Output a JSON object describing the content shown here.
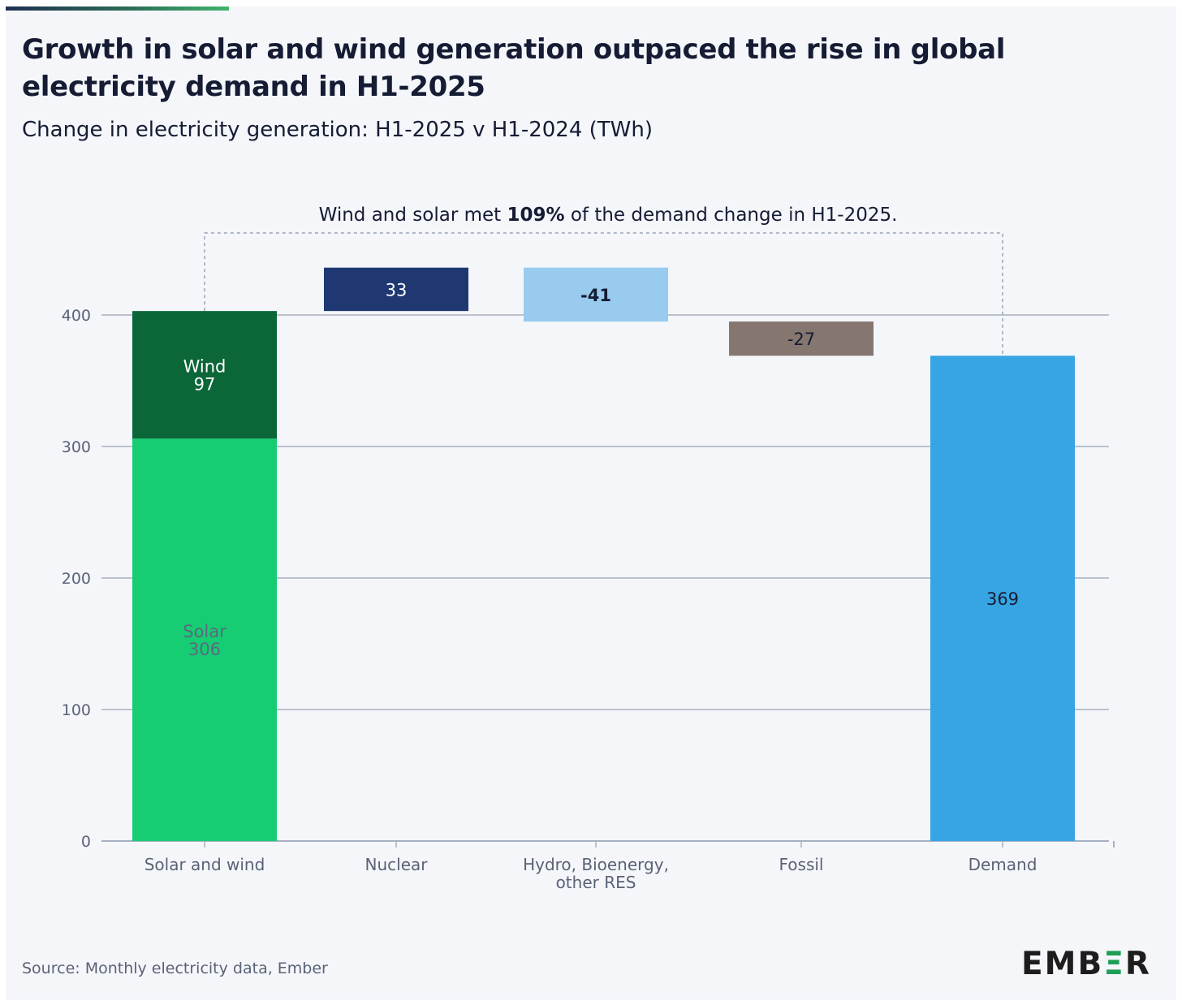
{
  "title": "Growth in solar and wind generation outpaced the rise in global electricity demand in H1-2025",
  "subtitle": "Change in electricity generation: H1-2025 v H1-2024 (TWh)",
  "annotation": {
    "before": "Wind and solar met ",
    "bold": "109%",
    "after": " of the demand change in H1-2025."
  },
  "source": "Source: Monthly electricity data, Ember",
  "logo": {
    "left": "EMB",
    "accent": "Ξ",
    "right": "R"
  },
  "colors": {
    "solar": "#16cd73",
    "wind": "#0b6638",
    "nuclear": "#1f3871",
    "hydro": "#98cbee",
    "fossil": "#85766f",
    "demand": "#37a5e4",
    "grid": "#a6b0c0",
    "axis_text": "#5a6275"
  },
  "chart_data": {
    "type": "bar",
    "subtype": "waterfall",
    "title": "Growth in solar and wind generation outpaced the rise in global electricity demand in H1-2025",
    "subtitle": "Change in electricity generation: H1-2025 v H1-2024 (TWh)",
    "ylabel": "",
    "xlabel": "",
    "ylim": [
      0,
      400
    ],
    "yticks": [
      0,
      100,
      200,
      300,
      400
    ],
    "grid": true,
    "categories": [
      {
        "label": [
          "Solar and wind"
        ]
      },
      {
        "label": [
          "Nuclear"
        ]
      },
      {
        "label": [
          "Hydro, Bioenergy,",
          "other RES"
        ]
      },
      {
        "label": [
          "Fossil"
        ]
      },
      {
        "label": [
          "Demand"
        ]
      }
    ],
    "bars": [
      {
        "category": 0,
        "name": "Solar",
        "start": 0,
        "end": 306,
        "value": "306",
        "color": "solar",
        "labelColor": "#5b6a80",
        "labelLines": [
          "Solar",
          "306"
        ]
      },
      {
        "category": 0,
        "name": "Wind",
        "start": 306,
        "end": 403,
        "value": "97",
        "color": "wind",
        "labelColor": "#ffffff",
        "labelLines": [
          "Wind",
          "97"
        ]
      },
      {
        "category": 1,
        "start": 403,
        "end": 436,
        "value": "33",
        "color": "nuclear",
        "labelColor": "#ffffff",
        "labelLines": [
          "33"
        ]
      },
      {
        "category": 2,
        "start": 436,
        "end": 395,
        "value": "-41",
        "color": "hydro",
        "labelColor": "#151c33",
        "labelBold": true,
        "labelLines": [
          "-41"
        ]
      },
      {
        "category": 3,
        "start": 395,
        "end": 369,
        "value": "-27",
        "color": "fossil",
        "labelColor": "#151c33",
        "labelLines": [
          "-27"
        ]
      },
      {
        "category": 4,
        "start": 0,
        "end": 369,
        "value": "369",
        "color": "demand",
        "labelColor": "#151c33",
        "labelLines": [
          "369"
        ]
      }
    ],
    "bracket": {
      "from_category": 0,
      "to_category": 4,
      "from_value": 403,
      "to_value": 369
    }
  }
}
